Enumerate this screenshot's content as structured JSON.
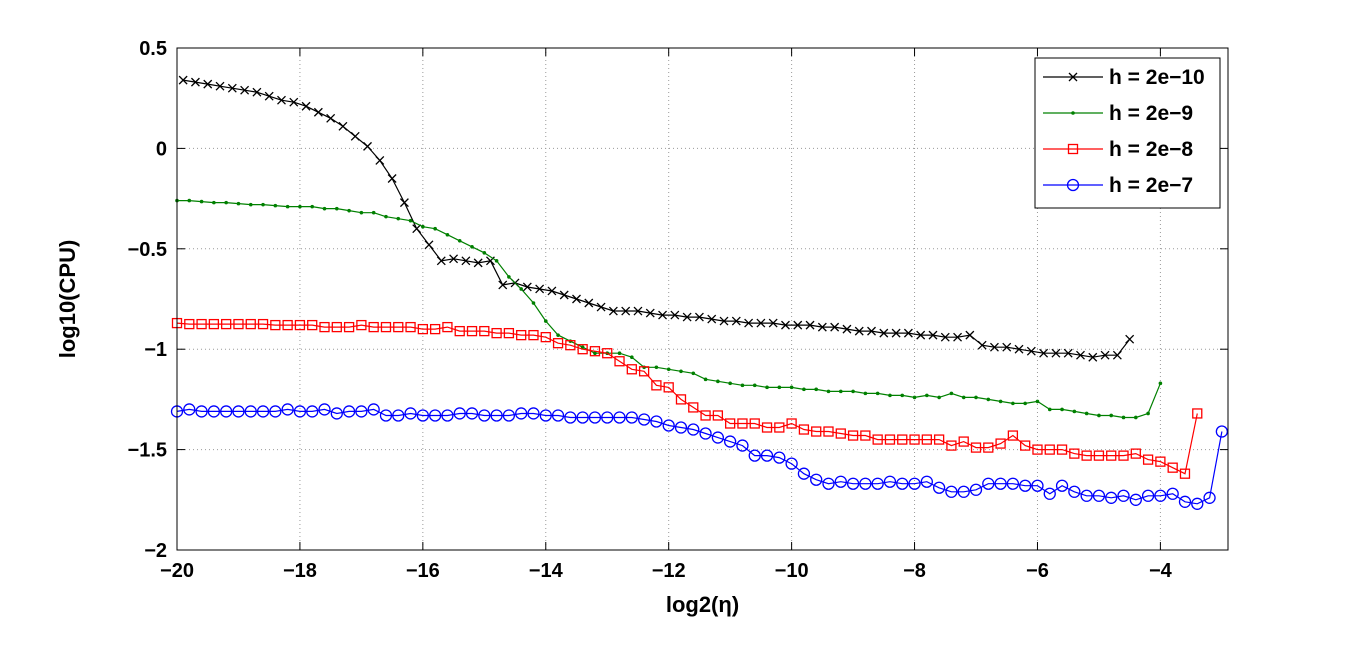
{
  "chart_data": {
    "type": "line",
    "title": "",
    "xlabel": "log2(η)",
    "ylabel": "log10(CPU)",
    "xlim": [
      -20,
      -2.9
    ],
    "ylim": [
      -2,
      0.5
    ],
    "xticks": [
      -20,
      -18,
      -16,
      -14,
      -12,
      -10,
      -8,
      -6,
      -4
    ],
    "xtick_labels": [
      "−20",
      "−18",
      "−16",
      "−14",
      "−12",
      "−10",
      "−8",
      "−6",
      "−4"
    ],
    "yticks": [
      0.5,
      0,
      -0.5,
      -1,
      -1.5,
      -2
    ],
    "ytick_labels": [
      "0.5",
      "0",
      "−0.5",
      "−1",
      "−1.5",
      "−2"
    ],
    "grid": true,
    "legend_position": "top-right",
    "series": [
      {
        "name": "h = 2e−10",
        "color": "#000000",
        "marker": "x",
        "x": [
          -19.9,
          -19.7,
          -19.5,
          -19.3,
          -19.1,
          -18.9,
          -18.7,
          -18.5,
          -18.3,
          -18.1,
          -17.9,
          -17.7,
          -17.5,
          -17.3,
          -17.1,
          -16.9,
          -16.7,
          -16.5,
          -16.3,
          -16.1,
          -15.9,
          -15.7,
          -15.5,
          -15.3,
          -15.1,
          -14.9,
          -14.7,
          -14.5,
          -14.3,
          -14.1,
          -13.9,
          -13.7,
          -13.5,
          -13.3,
          -13.1,
          -12.9,
          -12.7,
          -12.5,
          -12.3,
          -12.1,
          -11.9,
          -11.7,
          -11.5,
          -11.3,
          -11.1,
          -10.9,
          -10.7,
          -10.5,
          -10.3,
          -10.1,
          -9.9,
          -9.7,
          -9.5,
          -9.3,
          -9.1,
          -8.9,
          -8.7,
          -8.5,
          -8.3,
          -8.1,
          -7.9,
          -7.7,
          -7.5,
          -7.3,
          -7.1,
          -6.9,
          -6.7,
          -6.5,
          -6.3,
          -6.1,
          -5.9,
          -5.7,
          -5.5,
          -5.3,
          -5.1,
          -4.9,
          -4.7,
          -4.5
        ],
        "y": [
          0.34,
          0.33,
          0.32,
          0.31,
          0.3,
          0.29,
          0.28,
          0.26,
          0.24,
          0.23,
          0.21,
          0.18,
          0.15,
          0.11,
          0.06,
          0.01,
          -0.06,
          -0.15,
          -0.27,
          -0.4,
          -0.48,
          -0.56,
          -0.55,
          -0.56,
          -0.57,
          -0.56,
          -0.68,
          -0.67,
          -0.69,
          -0.7,
          -0.71,
          -0.73,
          -0.75,
          -0.77,
          -0.79,
          -0.81,
          -0.81,
          -0.81,
          -0.82,
          -0.83,
          -0.83,
          -0.84,
          -0.84,
          -0.85,
          -0.86,
          -0.86,
          -0.87,
          -0.87,
          -0.87,
          -0.88,
          -0.88,
          -0.88,
          -0.89,
          -0.89,
          -0.9,
          -0.91,
          -0.91,
          -0.92,
          -0.92,
          -0.92,
          -0.93,
          -0.93,
          -0.94,
          -0.94,
          -0.93,
          -0.98,
          -0.99,
          -0.99,
          -1.0,
          -1.01,
          -1.02,
          -1.02,
          -1.02,
          -1.03,
          -1.04,
          -1.03,
          -1.03,
          -0.95
        ]
      },
      {
        "name": "h = 2e−9",
        "color": "#008000",
        "marker": ".",
        "x": [
          -20,
          -19.8,
          -19.6,
          -19.4,
          -19.2,
          -19.0,
          -18.8,
          -18.6,
          -18.4,
          -18.2,
          -18.0,
          -17.8,
          -17.6,
          -17.4,
          -17.2,
          -17.0,
          -16.8,
          -16.6,
          -16.4,
          -16.2,
          -16.0,
          -15.8,
          -15.6,
          -15.4,
          -15.2,
          -15.0,
          -14.8,
          -14.6,
          -14.4,
          -14.2,
          -14.0,
          -13.8,
          -13.6,
          -13.4,
          -13.2,
          -13.0,
          -12.8,
          -12.6,
          -12.4,
          -12.2,
          -12.0,
          -11.8,
          -11.6,
          -11.4,
          -11.2,
          -11.0,
          -10.8,
          -10.6,
          -10.4,
          -10.2,
          -10.0,
          -9.8,
          -9.6,
          -9.4,
          -9.2,
          -9.0,
          -8.8,
          -8.6,
          -8.4,
          -8.2,
          -8.0,
          -7.8,
          -7.6,
          -7.4,
          -7.2,
          -7.0,
          -6.8,
          -6.6,
          -6.4,
          -6.2,
          -6.0,
          -5.8,
          -5.6,
          -5.4,
          -5.2,
          -5.0,
          -4.8,
          -4.6,
          -4.4,
          -4.2,
          -4.0
        ],
        "y": [
          -0.26,
          -0.26,
          -0.265,
          -0.27,
          -0.27,
          -0.275,
          -0.28,
          -0.28,
          -0.285,
          -0.29,
          -0.29,
          -0.29,
          -0.3,
          -0.3,
          -0.31,
          -0.32,
          -0.32,
          -0.34,
          -0.35,
          -0.36,
          -0.39,
          -0.4,
          -0.43,
          -0.46,
          -0.49,
          -0.52,
          -0.56,
          -0.64,
          -0.7,
          -0.77,
          -0.86,
          -0.93,
          -0.96,
          -0.99,
          -1.02,
          -1.02,
          -1.02,
          -1.04,
          -1.09,
          -1.09,
          -1.1,
          -1.11,
          -1.12,
          -1.15,
          -1.16,
          -1.17,
          -1.18,
          -1.18,
          -1.19,
          -1.19,
          -1.19,
          -1.2,
          -1.2,
          -1.21,
          -1.21,
          -1.21,
          -1.22,
          -1.22,
          -1.23,
          -1.23,
          -1.24,
          -1.23,
          -1.24,
          -1.22,
          -1.24,
          -1.24,
          -1.25,
          -1.26,
          -1.27,
          -1.27,
          -1.26,
          -1.3,
          -1.3,
          -1.31,
          -1.32,
          -1.33,
          -1.33,
          -1.34,
          -1.34,
          -1.32,
          -1.17
        ]
      },
      {
        "name": "h = 2e−8",
        "color": "#ff0000",
        "marker": "square",
        "x": [
          -20,
          -19.8,
          -19.6,
          -19.4,
          -19.2,
          -19.0,
          -18.8,
          -18.6,
          -18.4,
          -18.2,
          -18.0,
          -17.8,
          -17.6,
          -17.4,
          -17.2,
          -17.0,
          -16.8,
          -16.6,
          -16.4,
          -16.2,
          -16.0,
          -15.8,
          -15.6,
          -15.4,
          -15.2,
          -15.0,
          -14.8,
          -14.6,
          -14.4,
          -14.2,
          -14.0,
          -13.8,
          -13.6,
          -13.4,
          -13.2,
          -13.0,
          -12.8,
          -12.6,
          -12.4,
          -12.2,
          -12.0,
          -11.8,
          -11.6,
          -11.4,
          -11.2,
          -11.0,
          -10.8,
          -10.6,
          -10.4,
          -10.2,
          -10.0,
          -9.8,
          -9.6,
          -9.4,
          -9.2,
          -9.0,
          -8.8,
          -8.6,
          -8.4,
          -8.2,
          -8.0,
          -7.8,
          -7.6,
          -7.4,
          -7.2,
          -7.0,
          -6.8,
          -6.6,
          -6.4,
          -6.2,
          -6.0,
          -5.8,
          -5.6,
          -5.4,
          -5.2,
          -5.0,
          -4.8,
          -4.6,
          -4.4,
          -4.2,
          -4.0,
          -3.8,
          -3.6,
          -3.4
        ],
        "y": [
          -0.87,
          -0.875,
          -0.875,
          -0.875,
          -0.875,
          -0.875,
          -0.875,
          -0.875,
          -0.88,
          -0.88,
          -0.88,
          -0.88,
          -0.89,
          -0.89,
          -0.89,
          -0.88,
          -0.89,
          -0.89,
          -0.89,
          -0.89,
          -0.9,
          -0.9,
          -0.89,
          -0.91,
          -0.91,
          -0.91,
          -0.92,
          -0.92,
          -0.93,
          -0.93,
          -0.94,
          -0.97,
          -0.98,
          -1.0,
          -1.01,
          -1.02,
          -1.06,
          -1.1,
          -1.11,
          -1.18,
          -1.19,
          -1.25,
          -1.29,
          -1.33,
          -1.33,
          -1.37,
          -1.37,
          -1.37,
          -1.39,
          -1.39,
          -1.37,
          -1.4,
          -1.41,
          -1.41,
          -1.42,
          -1.43,
          -1.43,
          -1.45,
          -1.45,
          -1.45,
          -1.45,
          -1.45,
          -1.45,
          -1.48,
          -1.46,
          -1.49,
          -1.49,
          -1.47,
          -1.43,
          -1.48,
          -1.5,
          -1.5,
          -1.5,
          -1.52,
          -1.53,
          -1.53,
          -1.53,
          -1.53,
          -1.52,
          -1.55,
          -1.56,
          -1.59,
          -1.62,
          -1.32
        ]
      },
      {
        "name": "h = 2e−7",
        "color": "#0000ff",
        "marker": "circle",
        "x": [
          -20,
          -19.8,
          -19.6,
          -19.4,
          -19.2,
          -19.0,
          -18.8,
          -18.6,
          -18.4,
          -18.2,
          -18.0,
          -17.8,
          -17.6,
          -17.4,
          -17.2,
          -17.0,
          -16.8,
          -16.6,
          -16.4,
          -16.2,
          -16.0,
          -15.8,
          -15.6,
          -15.4,
          -15.2,
          -15.0,
          -14.8,
          -14.6,
          -14.4,
          -14.2,
          -14.0,
          -13.8,
          -13.6,
          -13.4,
          -13.2,
          -13.0,
          -12.8,
          -12.6,
          -12.4,
          -12.2,
          -12.0,
          -11.8,
          -11.6,
          -11.4,
          -11.2,
          -11.0,
          -10.8,
          -10.6,
          -10.4,
          -10.2,
          -10.0,
          -9.8,
          -9.6,
          -9.4,
          -9.2,
          -9.0,
          -8.8,
          -8.6,
          -8.4,
          -8.2,
          -8.0,
          -7.8,
          -7.6,
          -7.4,
          -7.2,
          -7.0,
          -6.8,
          -6.6,
          -6.4,
          -6.2,
          -6.0,
          -5.8,
          -5.6,
          -5.4,
          -5.2,
          -5.0,
          -4.8,
          -4.6,
          -4.4,
          -4.2,
          -4.0,
          -3.8,
          -3.6,
          -3.4,
          -3.2,
          -3.0
        ],
        "y": [
          -1.31,
          -1.3,
          -1.31,
          -1.31,
          -1.31,
          -1.31,
          -1.31,
          -1.31,
          -1.31,
          -1.3,
          -1.31,
          -1.31,
          -1.3,
          -1.32,
          -1.31,
          -1.31,
          -1.3,
          -1.33,
          -1.33,
          -1.32,
          -1.33,
          -1.33,
          -1.33,
          -1.32,
          -1.32,
          -1.33,
          -1.33,
          -1.33,
          -1.32,
          -1.32,
          -1.33,
          -1.33,
          -1.34,
          -1.34,
          -1.34,
          -1.34,
          -1.34,
          -1.34,
          -1.35,
          -1.36,
          -1.38,
          -1.39,
          -1.4,
          -1.42,
          -1.44,
          -1.46,
          -1.48,
          -1.53,
          -1.53,
          -1.54,
          -1.57,
          -1.62,
          -1.65,
          -1.67,
          -1.66,
          -1.67,
          -1.67,
          -1.67,
          -1.66,
          -1.67,
          -1.67,
          -1.66,
          -1.69,
          -1.71,
          -1.71,
          -1.7,
          -1.67,
          -1.67,
          -1.67,
          -1.68,
          -1.68,
          -1.72,
          -1.68,
          -1.71,
          -1.73,
          -1.73,
          -1.74,
          -1.73,
          -1.75,
          -1.73,
          -1.73,
          -1.72,
          -1.76,
          -1.77,
          -1.74,
          -1.41
        ]
      }
    ]
  }
}
